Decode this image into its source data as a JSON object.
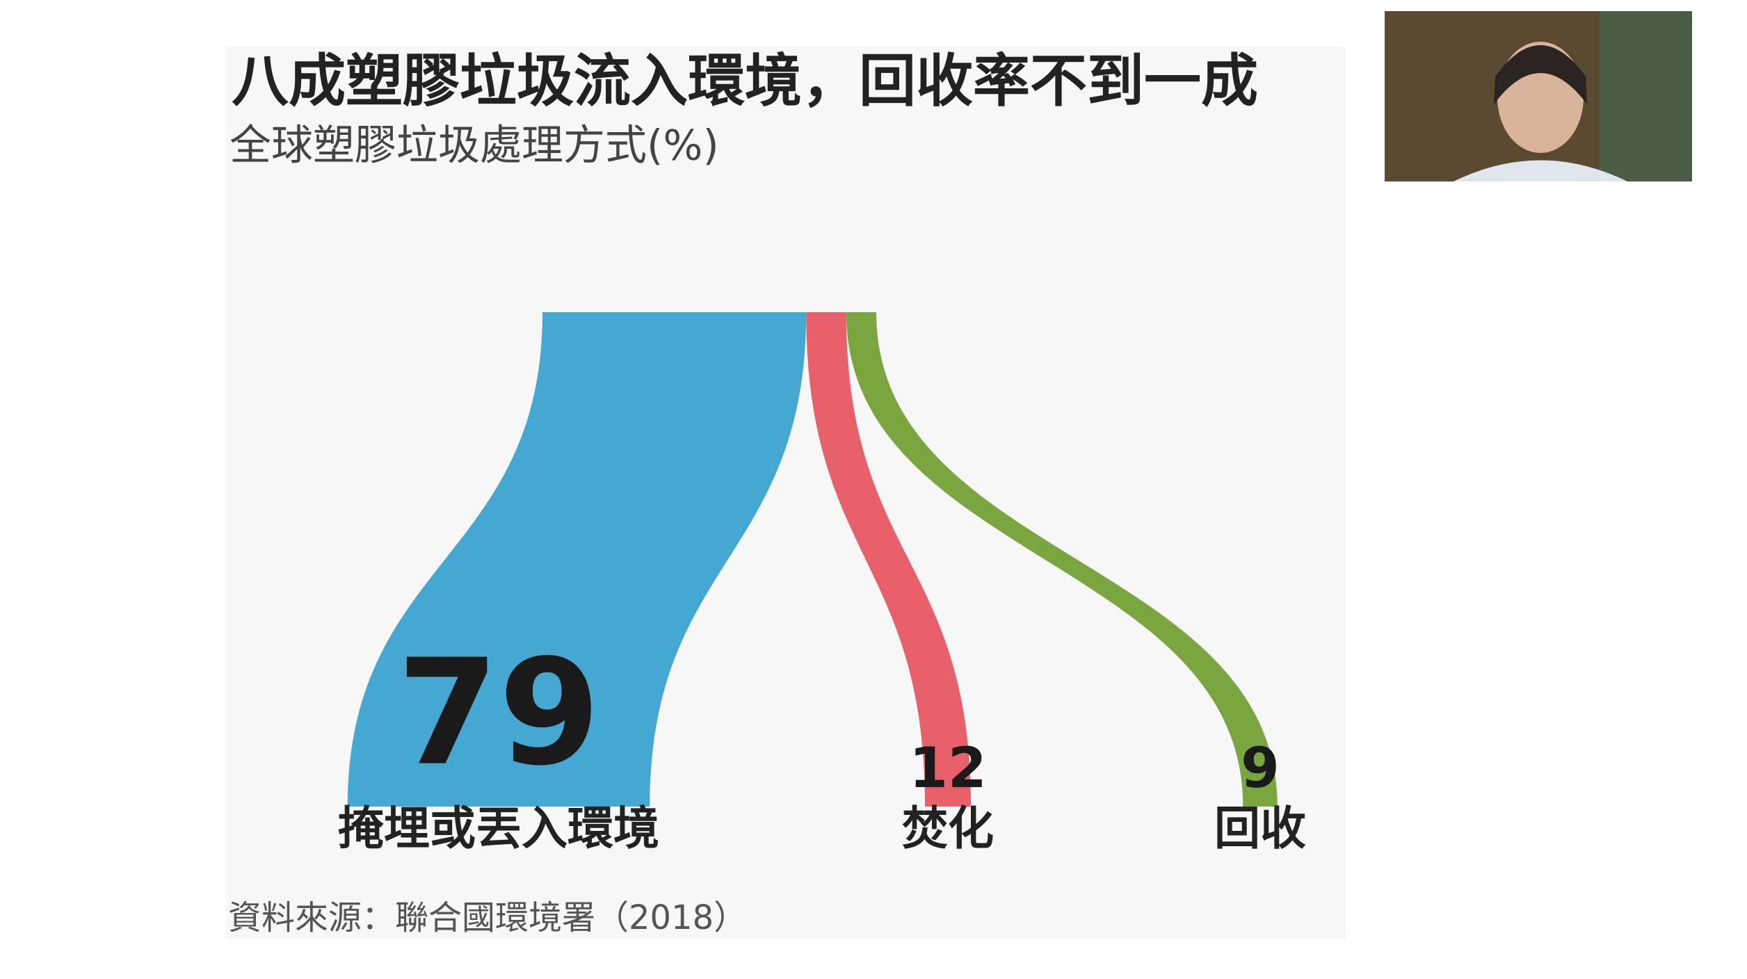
{
  "chart_data": {
    "type": "sankey",
    "title": "八成塑膠垃圾流入環境，回收率不到一成",
    "subtitle": "全球塑膠垃圾處理方式(%)",
    "source": "資料來源：聯合國環境署（2018）",
    "categories": [
      "掩埋或丟入環境",
      "焚化",
      "回收"
    ],
    "values": [
      79,
      12,
      9
    ],
    "colors": [
      "#45a8d2",
      "#e8606a",
      "#7aa640"
    ]
  }
}
